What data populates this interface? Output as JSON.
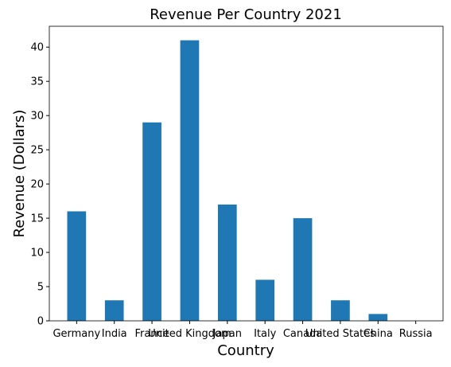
{
  "chart_data": {
    "type": "bar",
    "title": "Revenue Per Country 2021",
    "x_label": "Country",
    "y_label": "Revenue (Dollars)",
    "categories": [
      "Germany",
      "India",
      "France",
      "United Kingdom",
      "Japan",
      "Italy",
      "Canada",
      "United States",
      "China",
      "Russia"
    ],
    "values": [
      16,
      3,
      29,
      41,
      17,
      6,
      15,
      3,
      1,
      0
    ],
    "color": "#1f77b4",
    "ylim": [
      0,
      43.05
    ],
    "yticks": [
      0,
      5,
      10,
      15,
      20,
      25,
      30,
      35,
      40
    ],
    "grid": false
  }
}
